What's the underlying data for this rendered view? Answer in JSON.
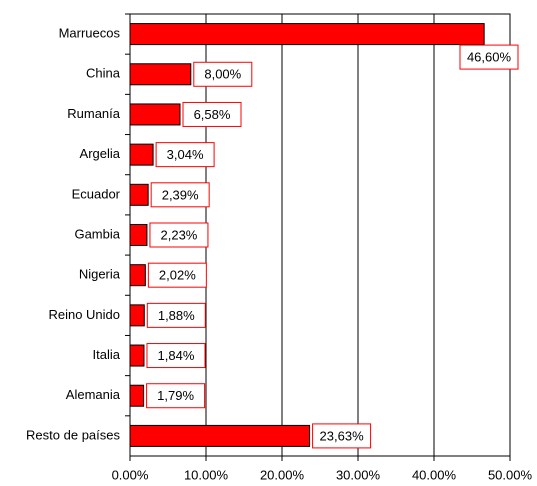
{
  "chart_data": {
    "type": "bar",
    "orientation": "horizontal",
    "categories": [
      "Marruecos",
      "China",
      "Rumanía",
      "Argelia",
      "Ecuador",
      "Gambia",
      "Nigeria",
      "Reino Unido",
      "Italia",
      "Alemania",
      "Resto de países"
    ],
    "values": [
      46.6,
      8.0,
      6.58,
      3.04,
      2.39,
      2.23,
      2.02,
      1.88,
      1.84,
      1.79,
      23.63
    ],
    "value_labels": [
      "46,60%",
      "8,00%",
      "6,58%",
      "3,04%",
      "2,39%",
      "2,23%",
      "2,02%",
      "1,88%",
      "1,84%",
      "1,79%",
      "23,63%"
    ],
    "color": "#ff0000",
    "xlim": [
      0,
      50
    ],
    "xticks": [
      {
        "value": 0,
        "label": "0.00%"
      },
      {
        "value": 10,
        "label": "10.00%"
      },
      {
        "value": 20,
        "label": "20.00%"
      },
      {
        "value": 30,
        "label": "30.00%"
      },
      {
        "value": 40,
        "label": "40.00%"
      },
      {
        "value": 50,
        "label": "50.00%"
      }
    ],
    "grid": true
  }
}
